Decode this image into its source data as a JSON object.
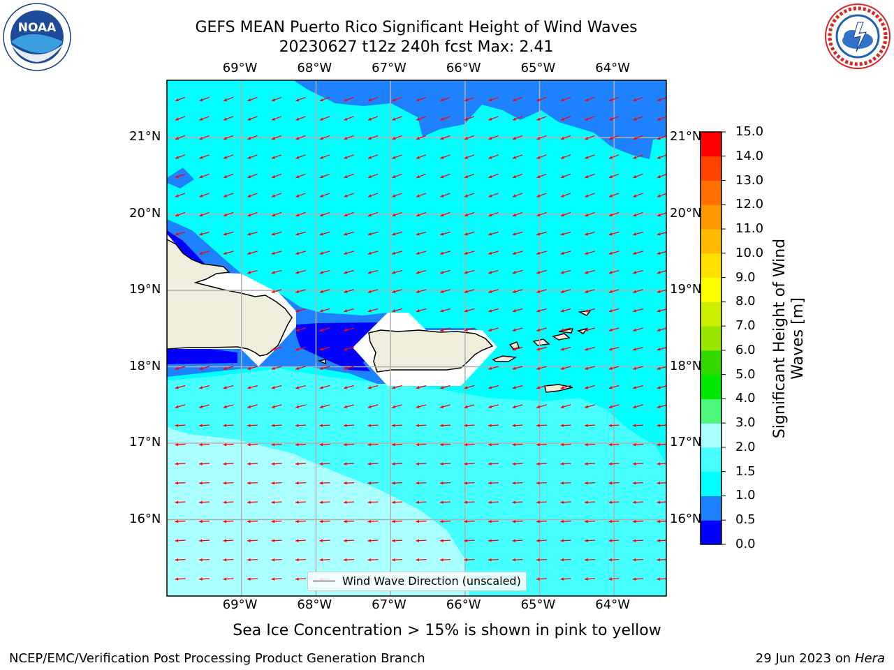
{
  "header": {
    "title_line1": "GEFS MEAN Puerto Rico Significant Height of Wind Waves",
    "title_line2": "20230627 t12z 240h fcst   Max: 2.41"
  },
  "logos": {
    "left": {
      "icon": "noaa-logo-icon",
      "text": "NOAA"
    },
    "right": {
      "icon": "national-weather-service-logo-icon"
    }
  },
  "map": {
    "lon_labels": [
      "69°W",
      "68°W",
      "67°W",
      "66°W",
      "65°W",
      "64°W"
    ],
    "lat_labels": [
      "21°N",
      "20°N",
      "19°N",
      "18°N",
      "17°N",
      "16°N"
    ],
    "extent": {
      "lon_min": -70.0,
      "lon_max": -63.3,
      "lat_min": 15.0,
      "lat_max": 21.75
    },
    "grid": true,
    "arrow_color": "#ff0000",
    "land_color": "#efeedc"
  },
  "legend": {
    "label": "Wind Wave Direction (unscaled)"
  },
  "colorbar": {
    "label": "Significant Height of Wind Waves [m]",
    "ticks": [
      "0.0",
      "0.5",
      "1.0",
      "1.5",
      "2.0",
      "3.0",
      "4.0",
      "5.0",
      "6.0",
      "7.0",
      "8.0",
      "9.0",
      "10.0",
      "11.0",
      "12.0",
      "13.0",
      "14.0",
      "15.0"
    ],
    "colors": [
      "#0000ff",
      "#1e82ff",
      "#00ffff",
      "#46ffff",
      "#aaffff",
      "#4cf77c",
      "#00e800",
      "#33d800",
      "#99e600",
      "#ccee00",
      "#ffff00",
      "#ffe000",
      "#ffbb00",
      "#ff9900",
      "#ff7000",
      "#ff4400",
      "#ff0000"
    ]
  },
  "caption": "Sea Ice Concentration > 15% is shown in pink to yellow",
  "footer": {
    "left": "NCEP/EMC/Verification Post Processing Product Generation Branch",
    "right_date": "29 Jun 2023 on",
    "right_host": "Hera"
  }
}
